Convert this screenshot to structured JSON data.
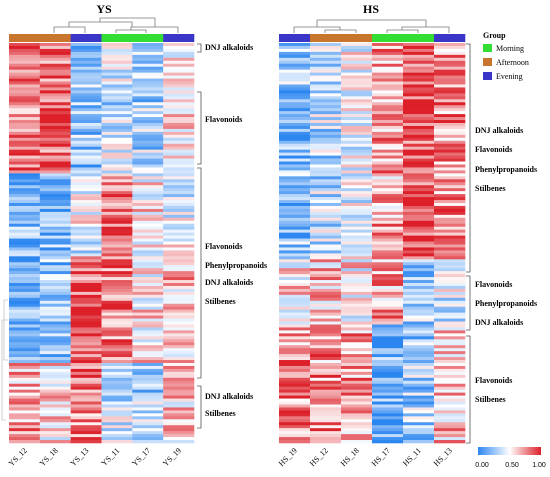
{
  "chart_data": [
    {
      "type": "heatmap",
      "title": "YS",
      "columns": [
        "YS_12",
        "YS_18",
        "YS_13",
        "YS_11",
        "YS_17",
        "YS_19"
      ],
      "column_groups": [
        "Afternoon",
        "Afternoon",
        "Evening",
        "Morning",
        "Morning",
        "Evening"
      ],
      "rows_approx": 135,
      "value_range": [
        0,
        1
      ],
      "clusters": [
        {
          "labels": [
            "DNJ alkaloids"
          ]
        },
        {
          "labels": [
            "Flavonoids"
          ]
        },
        {
          "labels": [
            "Flavonoids",
            "Phenylpropanoids",
            "DNJ alkaloids",
            "Stilbenes"
          ]
        },
        {
          "labels": [
            "DNJ alkaloids",
            "Stilbenes"
          ]
        }
      ]
    },
    {
      "type": "heatmap",
      "title": "HS",
      "columns": [
        "HS_19",
        "HS_12",
        "HS_18",
        "HS_17",
        "HS_11",
        "HS_13"
      ],
      "column_groups": [
        "Evening",
        "Afternoon",
        "Afternoon",
        "Morning",
        "Morning",
        "Evening"
      ],
      "rows_approx": 135,
      "value_range": [
        0,
        1
      ],
      "clusters": [
        {
          "labels": [
            "DNJ alkaloids",
            "Flavonoids",
            "Phenylpropanoids",
            "Stilbenes"
          ]
        },
        {
          "labels": [
            "Flavonoids",
            "Phenylpropanoids",
            "DNJ alkaloids"
          ]
        },
        {
          "labels": [
            "Flavonoids",
            "Stilbenes"
          ]
        }
      ]
    }
  ],
  "legend": {
    "title": "Group",
    "items": [
      {
        "label": "Morning",
        "color": "#33dd33"
      },
      {
        "label": "Afternoon",
        "color": "#c8762e"
      },
      {
        "label": "Evening",
        "color": "#3a37c8"
      }
    ]
  },
  "colorbar": {
    "ticks": [
      "0.00",
      "0.50",
      "1.00"
    ],
    "colors": [
      "#2c86f0",
      "#ffffff",
      "#dc1f28"
    ]
  }
}
